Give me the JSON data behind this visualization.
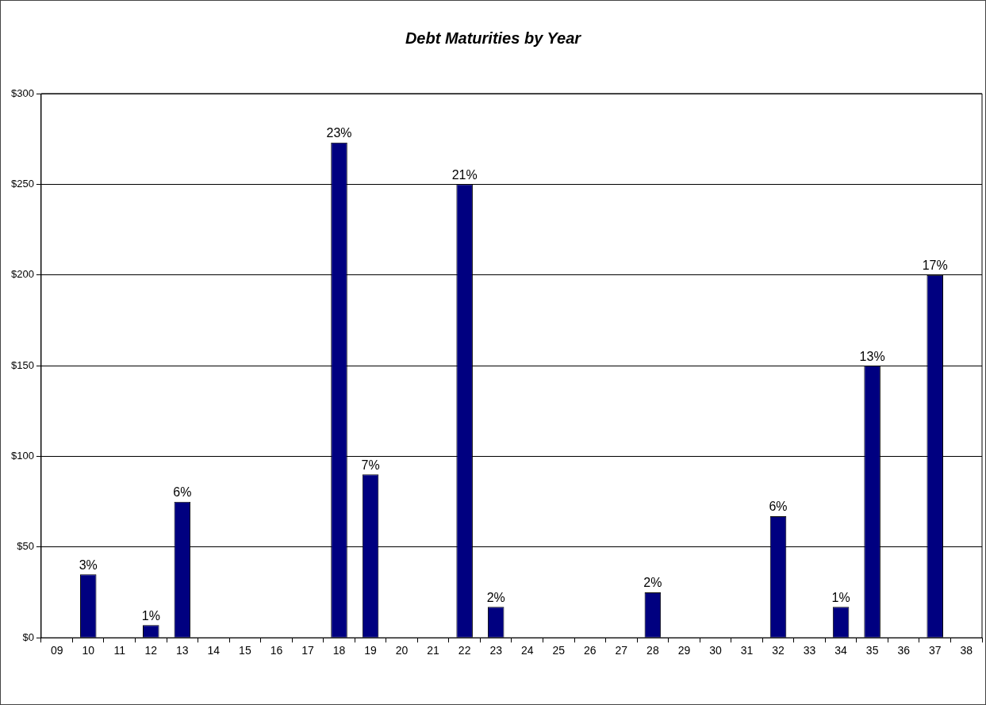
{
  "chart_data": {
    "type": "bar",
    "title": "Debt Maturities by Year",
    "categories": [
      "09",
      "10",
      "11",
      "12",
      "13",
      "14",
      "15",
      "16",
      "17",
      "18",
      "19",
      "20",
      "21",
      "22",
      "23",
      "24",
      "25",
      "26",
      "27",
      "28",
      "29",
      "30",
      "31",
      "32",
      "33",
      "34",
      "35",
      "36",
      "37",
      "38"
    ],
    "values": [
      0,
      35,
      0,
      7,
      75,
      0,
      0,
      0,
      0,
      273,
      90,
      0,
      0,
      250,
      17,
      0,
      0,
      0,
      0,
      25,
      0,
      0,
      0,
      67,
      0,
      17,
      150,
      0,
      200,
      0
    ],
    "annotations": [
      {
        "text": "3%",
        "x": "10",
        "y": 35
      },
      {
        "text": "1%",
        "x": "12",
        "y": 7
      },
      {
        "text": "6%",
        "x": "13",
        "y": 75
      },
      {
        "text": "23%",
        "x": "18",
        "y": 273
      },
      {
        "text": "7%",
        "x": "19",
        "y": 90
      },
      {
        "text": "21%",
        "x": "22",
        "y": 250
      },
      {
        "text": "2%",
        "x": "23",
        "y": 17
      },
      {
        "text": "2%",
        "x": "28",
        "y": 25
      },
      {
        "text": "6%",
        "x": "32",
        "y": 67
      },
      {
        "text": "1%",
        "x": "34",
        "y": 17
      },
      {
        "text": "13%",
        "x": "35",
        "y": 150
      },
      {
        "text": "17%",
        "x": "37",
        "y": 200
      }
    ],
    "color": "#000080",
    "ylim": [
      0,
      300
    ],
    "yticks": [
      {
        "value": 0,
        "label": "$0"
      },
      {
        "value": 50,
        "label": "$50"
      },
      {
        "value": 100,
        "label": "$100"
      },
      {
        "value": 150,
        "label": "$150"
      },
      {
        "value": 200,
        "label": "$200"
      },
      {
        "value": 250,
        "label": "$250"
      },
      {
        "value": 300,
        "label": "$300"
      }
    ],
    "grid": "y",
    "legend": false
  }
}
